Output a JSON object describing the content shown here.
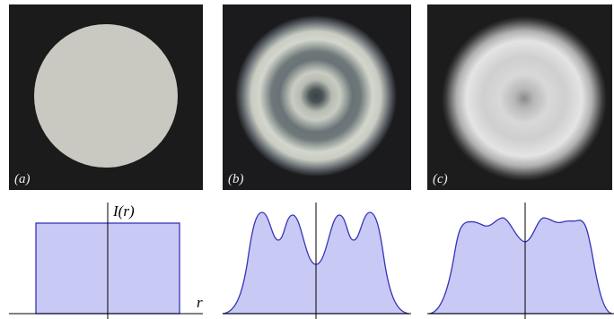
{
  "panels": [
    {
      "label": "(a)"
    },
    {
      "label": "(b)"
    },
    {
      "label": "(c)"
    }
  ],
  "profile": {
    "y_label": "I(r)",
    "x_label": "r"
  }
}
